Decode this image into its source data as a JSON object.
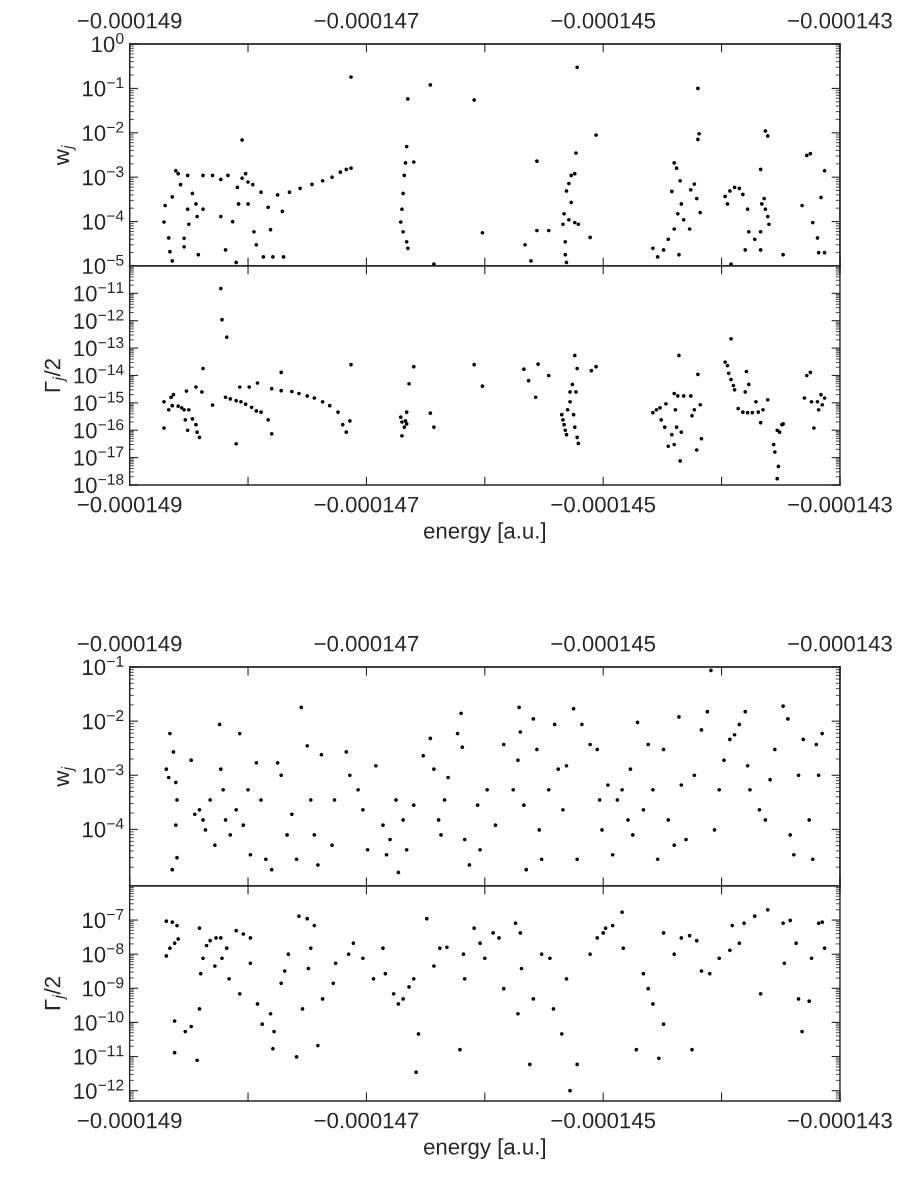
{
  "chart_data": [
    {
      "type": "scatter",
      "ylabel": "w$_{j}$",
      "color": "#000000",
      "marker": "circle",
      "log": "y",
      "tick_labels": "y",
      "xlim": [
        -0.000149,
        -0.000143
      ],
      "xticks": [
        {
          "value": -0.000149,
          "label": null
        },
        {
          "value": -0.000148,
          "label": null
        },
        {
          "value": -0.000147,
          "label": null
        },
        {
          "value": -0.000146,
          "label": null
        },
        {
          "value": -0.000145,
          "label": null
        },
        {
          "value": -0.000144,
          "label": null
        },
        {
          "value": -0.000143,
          "label": null
        }
      ],
      "x2lim": [
        -0.000149,
        -0.000143
      ],
      "x2ticks": [
        {
          "value": -0.000149,
          "label": "−0.000149"
        },
        {
          "value": -0.000148,
          "label": null
        },
        {
          "value": -0.000147,
          "label": "−0.000147"
        },
        {
          "value": -0.000146,
          "label": null
        },
        {
          "value": -0.000145,
          "label": "−0.000145"
        },
        {
          "value": -0.000144,
          "label": null
        },
        {
          "value": -0.000143,
          "label": "−0.000143"
        }
      ],
      "ylim": [
        1e-05,
        1
      ],
      "yticks": [
        {
          "value": 1e-05,
          "label": "10$^{−5}$"
        },
        {
          "value": 0.0001,
          "label": "10$^{−4}$"
        },
        {
          "value": 0.001,
          "label": "10$^{−3}$"
        },
        {
          "value": 0.01,
          "label": "10$^{−2}$"
        },
        {
          "value": 0.1,
          "label": "10$^{−1}$"
        },
        {
          "value": 1,
          "label": "10$^{0}$"
        }
      ],
      "x": [
        -0.00014871,
        -0.0001487,
        -0.00014867,
        -0.00014866,
        -0.00014864,
        -0.00014861,
        -0.00014864,
        -0.00014859,
        -0.00014857,
        -0.00014854,
        -0.00014854,
        -0.00014851,
        -0.00014851,
        -0.0001485,
        -0.00014847,
        -0.00014844,
        -0.00014843,
        -0.00014842,
        -0.00014838,
        -0.00014838,
        -0.0001483,
        -0.00014823,
        -0.00014823,
        -0.00014819,
        -0.00014817,
        -0.00014813,
        -0.0001481,
        -0.00014809,
        -0.00014808,
        -0.00014805,
        -0.00014805,
        -0.00014802,
        -0.000148,
        -0.000148,
        -0.00014796,
        -0.00014795,
        -0.00014793,
        -0.00014789,
        -0.00014787,
        -0.00014783,
        -0.00014781,
        -0.00014779,
        -0.00014775,
        -0.00014771,
        -0.0001477,
        -0.00014765,
        -0.00014756,
        -0.00014746,
        -0.00014737,
        -0.00014729,
        -0.00014722,
        -0.00014717,
        -0.00014713,
        -0.00014713,
        -0.00014671,
        -0.0001467,
        -0.00014669,
        -0.00014668,
        -0.00014667,
        -0.00014666,
        -0.00014665,
        -0.00014669,
        -0.00014666,
        -0.00014665,
        -0.0001466,
        -0.00014646,
        -0.00014643,
        -0.00014609,
        -0.00014602,
        -0.00014566,
        -0.00014561,
        -0.00014556,
        -0.00014556,
        -0.00014546,
        -0.00014534,
        -0.00014533,
        -0.00014532,
        -0.00014532,
        -0.00014531,
        -0.00014531,
        -0.00014529,
        -0.00014527,
        -0.00014529,
        -0.00014527,
        -0.00014524,
        -0.00014523,
        -0.00014522,
        -0.00014524,
        -0.00014521,
        -0.00014511,
        -0.00014506,
        -0.00014458,
        -0.00014454,
        -0.00014449,
        -0.00014445,
        -0.00014442,
        -0.0001444,
        -0.00014438,
        -0.00014437,
        -0.0001444,
        -0.00014436,
        -0.00014435,
        -0.00014434,
        -0.00014432,
        -0.00014427,
        -0.00014426,
        -0.00014423,
        -0.00014421,
        -0.0001442,
        -0.0001442,
        -0.00014419,
        -0.00014418,
        -0.00014397,
        -0.00014395,
        -0.00014393,
        -0.00014389,
        -0.00014385,
        -0.00014382,
        -0.00014392,
        -0.0001438,
        -0.00014378,
        -0.00014377,
        -0.00014372,
        -0.00014367,
        -0.00014367,
        -0.00014363,
        -0.00014361,
        -0.00014367,
        -0.00014366,
        -0.00014364,
        -0.00014363,
        -0.00014361,
        -0.0001436,
        -0.00014348,
        -0.00014332,
        -0.00014328,
        -0.00014325,
        -0.00014323,
        -0.00014319,
        -0.00014318,
        -0.00014316,
        -0.00014313,
        -0.00014313
      ],
      "values": [
        9.8e-05,
        0.00023,
        4.3e-05,
        2.1e-05,
        1.3e-05,
        0.0014,
        0.00036,
        0.0012,
        0.00068,
        4.2e-05,
        2.7e-05,
        0.0011,
        0.00019,
        8.7e-05,
        0.00043,
        0.00025,
        0.00013,
        1.8e-05,
        0.00019,
        0.0011,
        0.0011,
        0.00089,
        0.00013,
        2.3e-05,
        0.0011,
        0.0001,
        1.2e-05,
        0.00059,
        0.00025,
        0.0069,
        0.00095,
        0.0012,
        0.00078,
        0.00025,
        0.00068,
        5.9e-05,
        3e-05,
        0.00046,
        1.6e-05,
        0.00021,
        6.6e-05,
        1.6e-05,
        0.0004,
        0.00017,
        1.6e-05,
        0.00046,
        0.00056,
        0.00069,
        0.00083,
        0.001,
        0.0013,
        0.0015,
        0.0016,
        0.18,
        9.8e-05,
        0.00019,
        0.00043,
        0.0011,
        0.0021,
        0.0049,
        0.058,
        5.9e-05,
        3.5e-05,
        2.5e-05,
        0.0022,
        0.12,
        1.1e-05,
        0.055,
        5.6e-05,
        3e-05,
        1.3e-05,
        0.0023,
        6.3e-05,
        6.3e-05,
        8.7e-05,
        0.00015,
        3.5e-05,
        1.8e-05,
        1.2e-05,
        0.00049,
        0.00072,
        0.0011,
        0.00011,
        0.00027,
        0.0012,
        0.0035,
        0.3,
        9.5e-05,
        8.7e-05,
        4.4e-05,
        0.0089,
        2.5e-05,
        1.6e-05,
        2.3e-05,
        4e-05,
        0.00048,
        0.0021,
        0.0016,
        0.00015,
        6.8e-05,
        1.8e-05,
        0.00083,
        0.00025,
        0.00011,
        6.8e-05,
        0.00052,
        0.0007,
        0.00033,
        0.0071,
        0.1,
        0.0095,
        0.00016,
        0.00037,
        0.00025,
        0.00049,
        0.00059,
        0.00056,
        0.00041,
        1.1e-05,
        2.3e-05,
        0.00019,
        5.9e-05,
        4e-05,
        2.3e-05,
        0.0015,
        0.011,
        0.0085,
        5.9e-05,
        0.00025,
        0.00033,
        0.00019,
        0.00013,
        8.7e-05,
        1.8e-05,
        0.00023,
        0.0031,
        0.0034,
        9.5e-05,
        4.3e-05,
        2e-05,
        0.00035,
        0.0014,
        2e-05
      ]
    },
    {
      "type": "scatter",
      "ylabel": "Γ$_{j}$/2",
      "xlabel": "energy [a.u.]",
      "color": "#000000",
      "marker": "circle",
      "log": "y",
      "xlim": [
        -0.000149,
        -0.000143
      ],
      "xticks": [
        {
          "value": -0.000149,
          "label": "−0.000149"
        },
        {
          "value": -0.000148,
          "label": null
        },
        {
          "value": -0.000147,
          "label": "−0.000147"
        },
        {
          "value": -0.000146,
          "label": null
        },
        {
          "value": -0.000145,
          "label": "−0.000145"
        },
        {
          "value": -0.000144,
          "label": null
        },
        {
          "value": -0.000143,
          "label": "−0.000143"
        }
      ],
      "ylim": [
        1e-18,
        1e-10
      ],
      "yticks": [
        {
          "value": 1e-18,
          "label": "10$^{−18}$"
        },
        {
          "value": 1e-17,
          "label": "10$^{−17}$"
        },
        {
          "value": 1e-16,
          "label": "10$^{−16}$"
        },
        {
          "value": 1e-15,
          "label": "10$^{−15}$"
        },
        {
          "value": 1e-14,
          "label": "10$^{−14}$"
        },
        {
          "value": 1e-13,
          "label": "10$^{−13}$"
        },
        {
          "value": 1e-12,
          "label": "10$^{−12}$"
        },
        {
          "value": 1e-11,
          "label": "10$^{−11}$"
        }
      ],
      "x": [
        -0.00014871,
        -0.00014871,
        -0.00014867,
        -0.00014865,
        -0.00014863,
        -0.00014864,
        -0.00014859,
        -0.00014856,
        -0.00014854,
        -0.00014853,
        -0.00014851,
        -0.0001485,
        -0.00014852,
        -0.00014844,
        -0.00014847,
        -0.00014844,
        -0.00014843,
        -0.00014841,
        -0.00014839,
        -0.00014838,
        -0.0001483,
        -0.00014823,
        -0.00014822,
        -0.00014818,
        -0.00014819,
        -0.00014815,
        -0.0001481,
        -0.00014806,
        -0.00014802,
        -0.00014797,
        -0.00014793,
        -0.00014789,
        -0.0001481,
        -0.00014807,
        -0.00014799,
        -0.00014792,
        -0.00014783,
        -0.0001478,
        -0.0001478,
        -0.00014772,
        -0.00014772,
        -0.00014763,
        -0.00014757,
        -0.0001475,
        -0.00014744,
        -0.00014737,
        -0.00014731,
        -0.00014724,
        -0.0001472,
        -0.00014717,
        -0.00014714,
        -0.00014713,
        -0.00014671,
        -0.0001467,
        -0.00014668,
        -0.00014667,
        -0.0001467,
        -0.00014666,
        -0.00014666,
        -0.00014664,
        -0.0001466,
        -0.00014646,
        -0.00014643,
        -0.00014609,
        -0.00014602,
        -0.00014567,
        -0.00014563,
        -0.00014557,
        -0.00014555,
        -0.00014546,
        -0.00014535,
        -0.00014534,
        -0.00014533,
        -0.00014532,
        -0.00014531,
        -0.0001453,
        -0.00014528,
        -0.00014528,
        -0.00014526,
        -0.00014525,
        -0.00014524,
        -0.00014524,
        -0.00014523,
        -0.00014522,
        -0.00014522,
        -0.00014521,
        -0.0001451,
        -0.00014506,
        -0.00014458,
        -0.00014455,
        -0.00014452,
        -0.00014451,
        -0.00014448,
        -0.00014447,
        -0.00014445,
        -0.00014442,
        -0.0001444,
        -0.0001444,
        -0.00014439,
        -0.00014438,
        -0.00014437,
        -0.00014436,
        -0.00014435,
        -0.00014434,
        -0.00014432,
        -0.00014426,
        -0.00014425,
        -0.00014423,
        -0.00014421,
        -0.0001442,
        -0.00014418,
        -0.00014417,
        -0.00014397,
        -0.00014395,
        -0.00014394,
        -0.00014392,
        -0.00014392,
        -0.0001439,
        -0.00014389,
        -0.00014386,
        -0.00014382,
        -0.00014378,
        -0.00014374,
        -0.00014369,
        -0.00014365,
        -0.00014361,
        -0.0001438,
        -0.00014379,
        -0.00014377,
        -0.00014371,
        -0.00014367,
        -0.00014356,
        -0.00014355,
        -0.00014353,
        -0.00014352,
        -0.00014353,
        -0.00014351,
        -0.00014349,
        -0.00014348,
        -0.0001433,
        -0.00014328,
        -0.00014325,
        -0.00014324,
        -0.00014322,
        -0.00014319,
        -0.00014318,
        -0.00014316,
        -0.00014315,
        -0.00014313
      ],
      "values": [
        1.2e-16,
        1.1e-15,
        5.6e-16,
        1.6e-15,
        2e-15,
        7.9e-16,
        7.6e-16,
        6.6e-16,
        5.6e-16,
        2.4e-16,
        1e-16,
        5.6e-16,
        2.7e-15,
        3.8e-15,
        2.6e-16,
        1.6e-16,
        8.5e-17,
        5.5e-17,
        2.5e-15,
        1.8e-14,
        8.3e-16,
        1.5e-11,
        1.1e-12,
        2.5e-13,
        1.6e-15,
        1.4e-15,
        1.2e-15,
        1.1e-15,
        9e-16,
        6.9e-16,
        5.1e-16,
        4.6e-16,
        3.2e-17,
        3.8e-15,
        3.8e-15,
        5.3e-15,
        2.4e-16,
        7.4e-17,
        3.3e-15,
        1.3e-14,
        2.8e-15,
        2.6e-15,
        2.2e-15,
        1.8e-15,
        1.5e-15,
        1.1e-15,
        7.9e-16,
        4.6e-16,
        1.6e-16,
        8.5e-17,
        2.2e-16,
        2.5e-14,
        3e-16,
        2e-16,
        1.3e-16,
        2.2e-16,
        6.3e-17,
        1.7e-16,
        4.6e-16,
        5e-15,
        2.1e-14,
        4.2e-16,
        1.3e-16,
        2.5e-14,
        4.1e-15,
        1.7e-14,
        6.5e-15,
        1.6e-15,
        2.6e-14,
        1e-14,
        3.7e-16,
        2.4e-16,
        1.6e-16,
        1e-16,
        6.9e-17,
        5.6e-16,
        2.5e-15,
        1.1e-15,
        4.7e-15,
        3.7e-16,
        5.4e-14,
        1.3e-16,
        2.5e-15,
        1.8e-14,
        5.5e-17,
        3.3e-17,
        1.5e-14,
        2.1e-14,
        4.4e-16,
        5.6e-16,
        6.6e-16,
        2.4e-16,
        1.3e-16,
        9.3e-16,
        2.6e-17,
        6.9e-17,
        2.2e-15,
        3e-17,
        5.6e-16,
        1.3e-16,
        1.8e-15,
        5.4e-14,
        7.6e-18,
        8.5e-17,
        1.8e-15,
        1.8e-15,
        3.4e-16,
        5.6e-16,
        1.9e-17,
        1.1e-14,
        8.5e-16,
        4.9e-17,
        3.1e-14,
        2.3e-14,
        1.2e-14,
        2.2e-13,
        7.1e-15,
        4.3e-15,
        3e-15,
        6.2e-16,
        4.6e-16,
        4.4e-16,
        4.4e-16,
        4.6e-16,
        5.6e-16,
        1.3e-15,
        2.5e-15,
        1.4e-14,
        4.7e-15,
        1.1e-15,
        1.9e-16,
        3e-17,
        1.6e-17,
        1e-16,
        4.8e-18,
        1.7e-18,
        8.5e-17,
        1.6e-16,
        1.7e-16,
        1.5e-15,
        1e-14,
        1.3e-14,
        1.1e-15,
        1.2e-16,
        1.1e-15,
        5.6e-16,
        2e-15,
        8.5e-16,
        1.5e-15
      ]
    },
    {
      "type": "scatter",
      "ylabel": "w$_{j}$",
      "color": "#000000",
      "marker": "circle",
      "log": "y",
      "tick_labels": "y",
      "xlim": [
        -0.000149,
        -0.000143
      ],
      "xticks": [
        {
          "value": -0.000149,
          "label": null
        },
        {
          "value": -0.000148,
          "label": null
        },
        {
          "value": -0.000147,
          "label": null
        },
        {
          "value": -0.000146,
          "label": null
        },
        {
          "value": -0.000145,
          "label": null
        },
        {
          "value": -0.000144,
          "label": null
        },
        {
          "value": -0.000143,
          "label": null
        }
      ],
      "x2lim": [
        -0.000149,
        -0.000143
      ],
      "x2ticks": [
        {
          "value": -0.000149,
          "label": "−0.000149"
        },
        {
          "value": -0.000148,
          "label": null
        },
        {
          "value": -0.000147,
          "label": "−0.000147"
        },
        {
          "value": -0.000146,
          "label": null
        },
        {
          "value": -0.000145,
          "label": "−0.000145"
        },
        {
          "value": -0.000144,
          "label": null
        },
        {
          "value": -0.000143,
          "label": "−0.000143"
        }
      ],
      "ylim": [
        9e-06,
        0.1
      ],
      "yticks": [
        {
          "value": 0.0001,
          "label": "10$^{−4}$"
        },
        {
          "value": 0.001,
          "label": "10$^{−3}$"
        },
        {
          "value": 0.01,
          "label": "10$^{−2}$"
        },
        {
          "value": 0.1,
          "label": "10$^{−1}$"
        }
      ],
      "x": [
        -0.00014869,
        -0.00014867,
        -0.00014866,
        -0.00014863,
        -0.00014861,
        -0.0001486,
        -0.00014861,
        -0.0001486,
        -0.00014864,
        -0.00014848,
        -0.00014845,
        -0.00014841,
        -0.00014838,
        -0.00014836,
        -0.00014832,
        -0.00014828,
        -0.00014824,
        -0.00014823,
        -0.00014821,
        -0.00014819,
        -0.00014815,
        -0.0001481,
        -0.00014807,
        -0.00014804,
        -0.000148,
        -0.00014798,
        -0.00014793,
        -0.00014789,
        -0.00014785,
        -0.0001478,
        -0.00014775,
        -0.00014772,
        -0.00014767,
        -0.00014763,
        -0.00014759,
        -0.00014755,
        -0.0001475,
        -0.00014747,
        -0.00014744,
        -0.00014741,
        -0.00014738,
        -0.00014729,
        -0.00014727,
        -0.00014717,
        -0.00014714,
        -0.00014707,
        -0.00014703,
        -0.00014699,
        -0.00014692,
        -0.00014686,
        -0.00014683,
        -0.0001468,
        -0.00014675,
        -0.00014673,
        -0.00014669,
        -0.00014666,
        -0.0001466,
        -0.00014652,
        -0.00014646,
        -0.00014643,
        -0.00014639,
        -0.00014637,
        -0.00014634,
        -0.00014631,
        -0.00014623,
        -0.0001462,
        -0.00014619,
        -0.00014617,
        -0.00014613,
        -0.00014606,
        -0.00014604,
        -0.00014598,
        -0.00014591,
        -0.00014584,
        -0.00014576,
        -0.00014572,
        -0.00014571,
        -0.0001457,
        -0.00014567,
        -0.00014565,
        -0.00014559,
        -0.00014556,
        -0.00014554,
        -0.00014552,
        -0.00014546,
        -0.00014541,
        -0.00014538,
        -0.00014534,
        -0.00014531,
        -0.00014525,
        -0.00014522,
        -0.00014518,
        -0.00014511,
        -0.00014505,
        -0.00014503,
        -0.00014501,
        -0.00014496,
        -0.00014492,
        -0.00014488,
        -0.00014484,
        -0.00014479,
        -0.00014477,
        -0.00014475,
        -0.00014471,
        -0.00014466,
        -0.00014462,
        -0.00014458,
        -0.00014454,
        -0.00014449,
        -0.00014445,
        -0.0001444,
        -0.00014436,
        -0.00014434,
        -0.0001443,
        -0.00014423,
        -0.00014417,
        -0.00014412,
        -0.00014409,
        -0.00014406,
        -0.00014402,
        -0.00014398,
        -0.00014393,
        -0.00014389,
        -0.00014385,
        -0.0001438,
        -0.00014378,
        -0.00014376,
        -0.00014368,
        -0.00014363,
        -0.00014359,
        -0.00014355,
        -0.00014348,
        -0.00014344,
        -0.00014342,
        -0.00014339,
        -0.00014335,
        -0.00014331,
        -0.00014326,
        -0.00014323,
        -0.0001432,
        -0.00014318,
        -0.00014315
      ],
      "values": [
        0.0013,
        0.00091,
        0.0059,
        0.0027,
        0.00074,
        0.00035,
        0.00012,
        3e-05,
        1.8e-05,
        0.0019,
        0.00019,
        0.00023,
        0.00015,
        9.8e-05,
        0.00035,
        5.1e-05,
        0.0087,
        0.0013,
        0.00054,
        0.00015,
        7.9e-05,
        0.00023,
        0.0059,
        0.00012,
        0.00054,
        3.4e-05,
        0.0017,
        0.00035,
        2.8e-05,
        1.8e-05,
        0.0017,
        0.001,
        7.9e-05,
        0.00019,
        2.8e-05,
        0.018,
        0.0035,
        0.00035,
        7.9e-05,
        2.2e-05,
        0.0024,
        5.1e-05,
        0.00035,
        0.0027,
        0.001,
        0.00054,
        0.00023,
        4.2e-05,
        0.0015,
        0.00012,
        3.4e-05,
        6.5e-05,
        0.00035,
        1.6e-05,
        0.00015,
        4.2e-05,
        0.00028,
        0.0023,
        0.0048,
        0.0013,
        0.00015,
        7.9e-05,
        0.00035,
        0.00091,
        0.0059,
        0.014,
        0.0033,
        6.5e-05,
        2.2e-05,
        0.00028,
        4.2e-05,
        0.00054,
        0.00012,
        0.0037,
        0.00054,
        0.0019,
        0.018,
        0.0063,
        0.00028,
        1.8e-05,
        0.011,
        0.003,
        9.8e-05,
        2.8e-05,
        0.00054,
        0.0087,
        0.0013,
        0.00023,
        0.0015,
        0.017,
        2.8e-05,
        0.0087,
        0.0037,
        0.003,
        0.00035,
        9.8e-05,
        0.00066,
        3.4e-05,
        0.00035,
        0.00054,
        0.00015,
        0.0013,
        7.9e-05,
        0.0095,
        0.00023,
        0.0037,
        0.00054,
        2.8e-05,
        0.003,
        0.00015,
        5.1e-05,
        0.012,
        0.00066,
        6.5e-05,
        0.001,
        0.0069,
        0.015,
        0.087,
        9.8e-05,
        0.00054,
        0.0019,
        0.0046,
        0.0056,
        0.0087,
        0.015,
        0.0015,
        0.00054,
        0.00023,
        0.00015,
        0.00083,
        0.003,
        0.019,
        0.011,
        7.9e-05,
        3.4e-05,
        0.001,
        0.0046,
        0.00015,
        2.8e-05,
        0.0037,
        0.001,
        0.0059
      ]
    },
    {
      "type": "scatter",
      "ylabel": "Γ$_{j}$/2",
      "xlabel": "energy [a.u.]",
      "color": "#000000",
      "marker": "circle",
      "log": "y",
      "xlim": [
        -0.000149,
        -0.000143
      ],
      "xticks": [
        {
          "value": -0.000149,
          "label": "−0.000149"
        },
        {
          "value": -0.000148,
          "label": null
        },
        {
          "value": -0.000147,
          "label": "−0.000147"
        },
        {
          "value": -0.000146,
          "label": null
        },
        {
          "value": -0.000145,
          "label": "−0.000145"
        },
        {
          "value": -0.000144,
          "label": null
        },
        {
          "value": -0.000143,
          "label": "−0.000143"
        }
      ],
      "ylim": [
        5e-13,
        1e-06
      ],
      "yticks": [
        {
          "value": 1e-12,
          "label": "10$^{−12}$"
        },
        {
          "value": 1e-11,
          "label": "10$^{−11}$"
        },
        {
          "value": 1e-10,
          "label": "10$^{−10}$"
        },
        {
          "value": 1e-09,
          "label": "10$^{−9}$"
        },
        {
          "value": 1e-08,
          "label": "10$^{−8}$"
        },
        {
          "value": 1e-07,
          "label": "10$^{−7}$"
        }
      ],
      "x": [
        -0.00014869,
        -0.00014864,
        -0.0001486,
        -0.00014869,
        -0.00014866,
        -0.00014862,
        -0.00014859,
        -0.00014862,
        -0.00014862,
        -0.00014853,
        -0.00014848,
        -0.00014843,
        -0.00014841,
        -0.0001484,
        -0.00014841,
        -0.00014838,
        -0.00014835,
        -0.00014832,
        -0.00014827,
        -0.00014823,
        -0.00014828,
        -0.00014822,
        -0.00014818,
        -0.0001481,
        -0.00014804,
        -0.00014816,
        -0.00014807,
        -0.00014798,
        -0.00014798,
        -0.00014792,
        -0.00014788,
        -0.00014781,
        -0.00014778,
        -0.00014779,
        -0.00014772,
        -0.00014766,
        -0.00014769,
        -0.00014759,
        -0.00014757,
        -0.0001475,
        -0.00014744,
        -0.00014747,
        -0.00014749,
        -0.00014754,
        -0.00014741,
        -0.00014737,
        -0.00014726,
        -0.00014728,
        -0.00014715,
        -0.00014711,
        -0.00014703,
        -0.00014694,
        -0.00014686,
        -0.00014684,
        -0.00014677,
        -0.00014673,
        -0.00014669,
        -0.00014664,
        -0.0001466,
        -0.00014658,
        -0.00014656,
        -0.00014649,
        -0.00014643,
        -0.00014638,
        -0.00014632,
        -0.00014621,
        -0.00014618,
        -0.00014617,
        -0.00014609,
        -0.00014604,
        -0.000146,
        -0.00014593,
        -0.00014588,
        -0.00014584,
        -0.00014574,
        -0.00014572,
        -0.0001457,
        -0.00014569,
        -0.00014562,
        -0.00014559,
        -0.00014552,
        -0.00014545,
        -0.00014542,
        -0.00014535,
        -0.00014531,
        -0.00014522,
        -0.00014528,
        -0.00014511,
        -0.00014505,
        -0.000145,
        -0.00014498,
        -0.00014492,
        -0.00014484,
        -0.00014483,
        -0.00014472,
        -0.00014466,
        -0.00014462,
        -0.00014458,
        -0.00014449,
        -0.00014453,
        -0.00014449,
        -0.0001444,
        -0.00014434,
        -0.00014425,
        -0.00014427,
        -0.00014421,
        -0.00014417,
        -0.0001441,
        -0.00014402,
        -0.00014393,
        -0.00014385,
        -0.00014391,
        -0.00014381,
        -0.00014372,
        -0.00014361,
        -0.00014367,
        -0.00014348,
        -0.00014342,
        -0.00014337,
        -0.00014335,
        -0.00014332,
        -0.00014324,
        -0.00014318,
        -0.00014313,
        -0.00014315,
        -0.00014326,
        -0.00014347
      ],
      "values": [
        9.3e-08,
        8.7e-08,
        6.9e-08,
        8.9e-09,
        1.5e-08,
        2.1e-08,
        2.8e-08,
        1.3e-11,
        1.1e-10,
        5.4e-11,
        7.6e-11,
        7.8e-12,
        5.8e-08,
        2.7e-09,
        2.5e-10,
        7.6e-09,
        1.8e-08,
        2.5e-08,
        3e-08,
        3e-08,
        4.5e-09,
        7.6e-09,
        1.5e-08,
        4.9e-08,
        3.9e-08,
        1.9e-09,
        6.9e-10,
        3e-08,
        5.4e-09,
        3.5e-10,
        8.9e-11,
        1.8e-10,
        5.4e-11,
        1.7e-11,
        1.4e-09,
        1e-08,
        3.2e-09,
        9.8e-12,
        1.3e-07,
        1.1e-07,
        6.9e-08,
        1.5e-08,
        3.8e-09,
        2.5e-10,
        2.1e-11,
        4.9e-10,
        5.4e-09,
        1.4e-09,
        1e-08,
        2.1e-08,
        7.6e-09,
        1.9e-09,
        1.5e-08,
        2.7e-09,
        6.9e-10,
        3.5e-10,
        4.9e-10,
        1.1e-09,
        1.9e-09,
        3.5e-12,
        4.6e-11,
        1.1e-07,
        4.5e-09,
        1.5e-08,
        1.6e-08,
        1.6e-11,
        1e-08,
        1.9e-09,
        5.8e-08,
        2.1e-08,
        7.6e-09,
        4.2e-08,
        3e-08,
        9.8e-10,
        8.1e-08,
        1.8e-10,
        4.2e-08,
        3.8e-09,
        5.9e-12,
        4.9e-10,
        1e-08,
        7.6e-09,
        2.5e-10,
        4.6e-11,
        1.9e-09,
        5.9e-12,
        1e-12,
        1e-08,
        3e-08,
        4.2e-08,
        5.8e-08,
        6.9e-08,
        1.7e-07,
        1.5e-08,
        1.6e-11,
        2.7e-09,
        9.8e-10,
        3.5e-10,
        8.9e-11,
        8.9e-12,
        4.2e-08,
        1e-08,
        3e-08,
        1.6e-11,
        3.5e-08,
        2.5e-08,
        3.2e-09,
        2.7e-09,
        7.6e-09,
        1.3e-08,
        2.1e-08,
        6.9e-08,
        8.1e-08,
        1.3e-07,
        2e-07,
        6.9e-10,
        8.1e-08,
        9.8e-08,
        2.1e-08,
        4.9e-10,
        5.4e-11,
        7.6e-09,
        8.1e-08,
        1.5e-08,
        8.7e-08,
        4.2e-10,
        5.4e-09
      ]
    }
  ]
}
